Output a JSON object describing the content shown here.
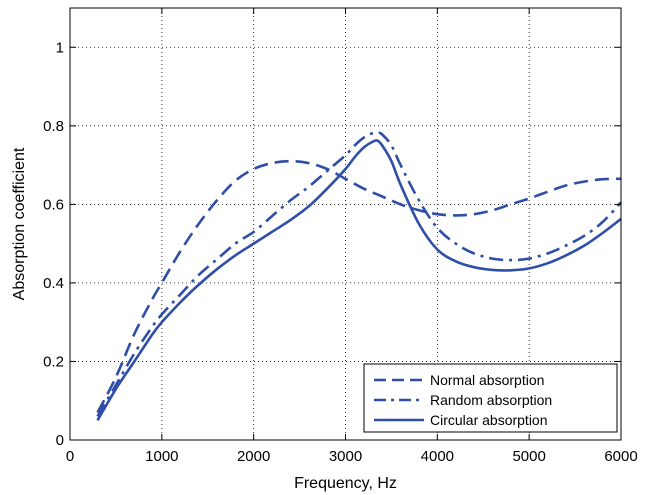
{
  "chart_data": {
    "type": "line",
    "title": "",
    "xlabel": "Frequency, Hz",
    "ylabel": "Absorption coefficient",
    "xlim": [
      0,
      6000
    ],
    "ylim": [
      0,
      1.1
    ],
    "xticks": [
      0,
      1000,
      2000,
      3000,
      4000,
      5000,
      6000
    ],
    "xtick_labels": [
      "0",
      "1000",
      "2000",
      "3000",
      "4000",
      "5000",
      "6000"
    ],
    "yticks": [
      0,
      0.2,
      0.4,
      0.6,
      0.8,
      1
    ],
    "ytick_labels": [
      "0",
      "0.2",
      "0.4",
      "0.6",
      "0.8",
      "1"
    ],
    "grid": true,
    "legend_position": "bottom-right",
    "color": "#2f4ea8",
    "series": [
      {
        "name": "Normal absorption",
        "style": "dashed",
        "x": [
          300,
          500,
          700,
          900,
          1000,
          1200,
          1400,
          1600,
          1800,
          2000,
          2200,
          2400,
          2600,
          2800,
          3000,
          3200,
          3400,
          3600,
          3800,
          4000,
          4200,
          4400,
          4600,
          4800,
          5000,
          5200,
          5400,
          5600,
          5800,
          6000
        ],
        "y": [
          0.07,
          0.16,
          0.27,
          0.36,
          0.4,
          0.48,
          0.55,
          0.61,
          0.66,
          0.69,
          0.705,
          0.71,
          0.705,
          0.69,
          0.665,
          0.64,
          0.62,
          0.6,
          0.585,
          0.575,
          0.572,
          0.575,
          0.585,
          0.6,
          0.615,
          0.632,
          0.648,
          0.658,
          0.664,
          0.665
        ]
      },
      {
        "name": "Random absorption",
        "style": "dashdot",
        "x": [
          300,
          500,
          700,
          900,
          1000,
          1200,
          1400,
          1600,
          1800,
          2000,
          2200,
          2400,
          2600,
          2800,
          3000,
          3100,
          3200,
          3300,
          3350,
          3400,
          3500,
          3600,
          3800,
          4000,
          4200,
          4400,
          4600,
          4800,
          5000,
          5200,
          5400,
          5600,
          5800,
          6000
        ],
        "y": [
          0.06,
          0.14,
          0.22,
          0.29,
          0.32,
          0.37,
          0.42,
          0.46,
          0.5,
          0.53,
          0.57,
          0.61,
          0.645,
          0.685,
          0.725,
          0.75,
          0.77,
          0.782,
          0.783,
          0.778,
          0.75,
          0.7,
          0.61,
          0.54,
          0.5,
          0.475,
          0.462,
          0.458,
          0.462,
          0.475,
          0.495,
          0.52,
          0.555,
          0.605
        ]
      },
      {
        "name": "Circular absorption",
        "style": "solid",
        "x": [
          300,
          500,
          700,
          900,
          1000,
          1200,
          1400,
          1600,
          1800,
          2000,
          2200,
          2400,
          2600,
          2800,
          3000,
          3100,
          3200,
          3300,
          3350,
          3400,
          3500,
          3600,
          3800,
          4000,
          4200,
          4400,
          4600,
          4800,
          5000,
          5200,
          5400,
          5600,
          5800,
          6000
        ],
        "y": [
          0.05,
          0.13,
          0.2,
          0.27,
          0.3,
          0.35,
          0.395,
          0.435,
          0.47,
          0.5,
          0.53,
          0.56,
          0.595,
          0.64,
          0.69,
          0.72,
          0.745,
          0.76,
          0.762,
          0.75,
          0.71,
          0.65,
          0.55,
          0.485,
          0.455,
          0.44,
          0.433,
          0.432,
          0.437,
          0.45,
          0.47,
          0.495,
          0.527,
          0.563
        ]
      }
    ]
  }
}
